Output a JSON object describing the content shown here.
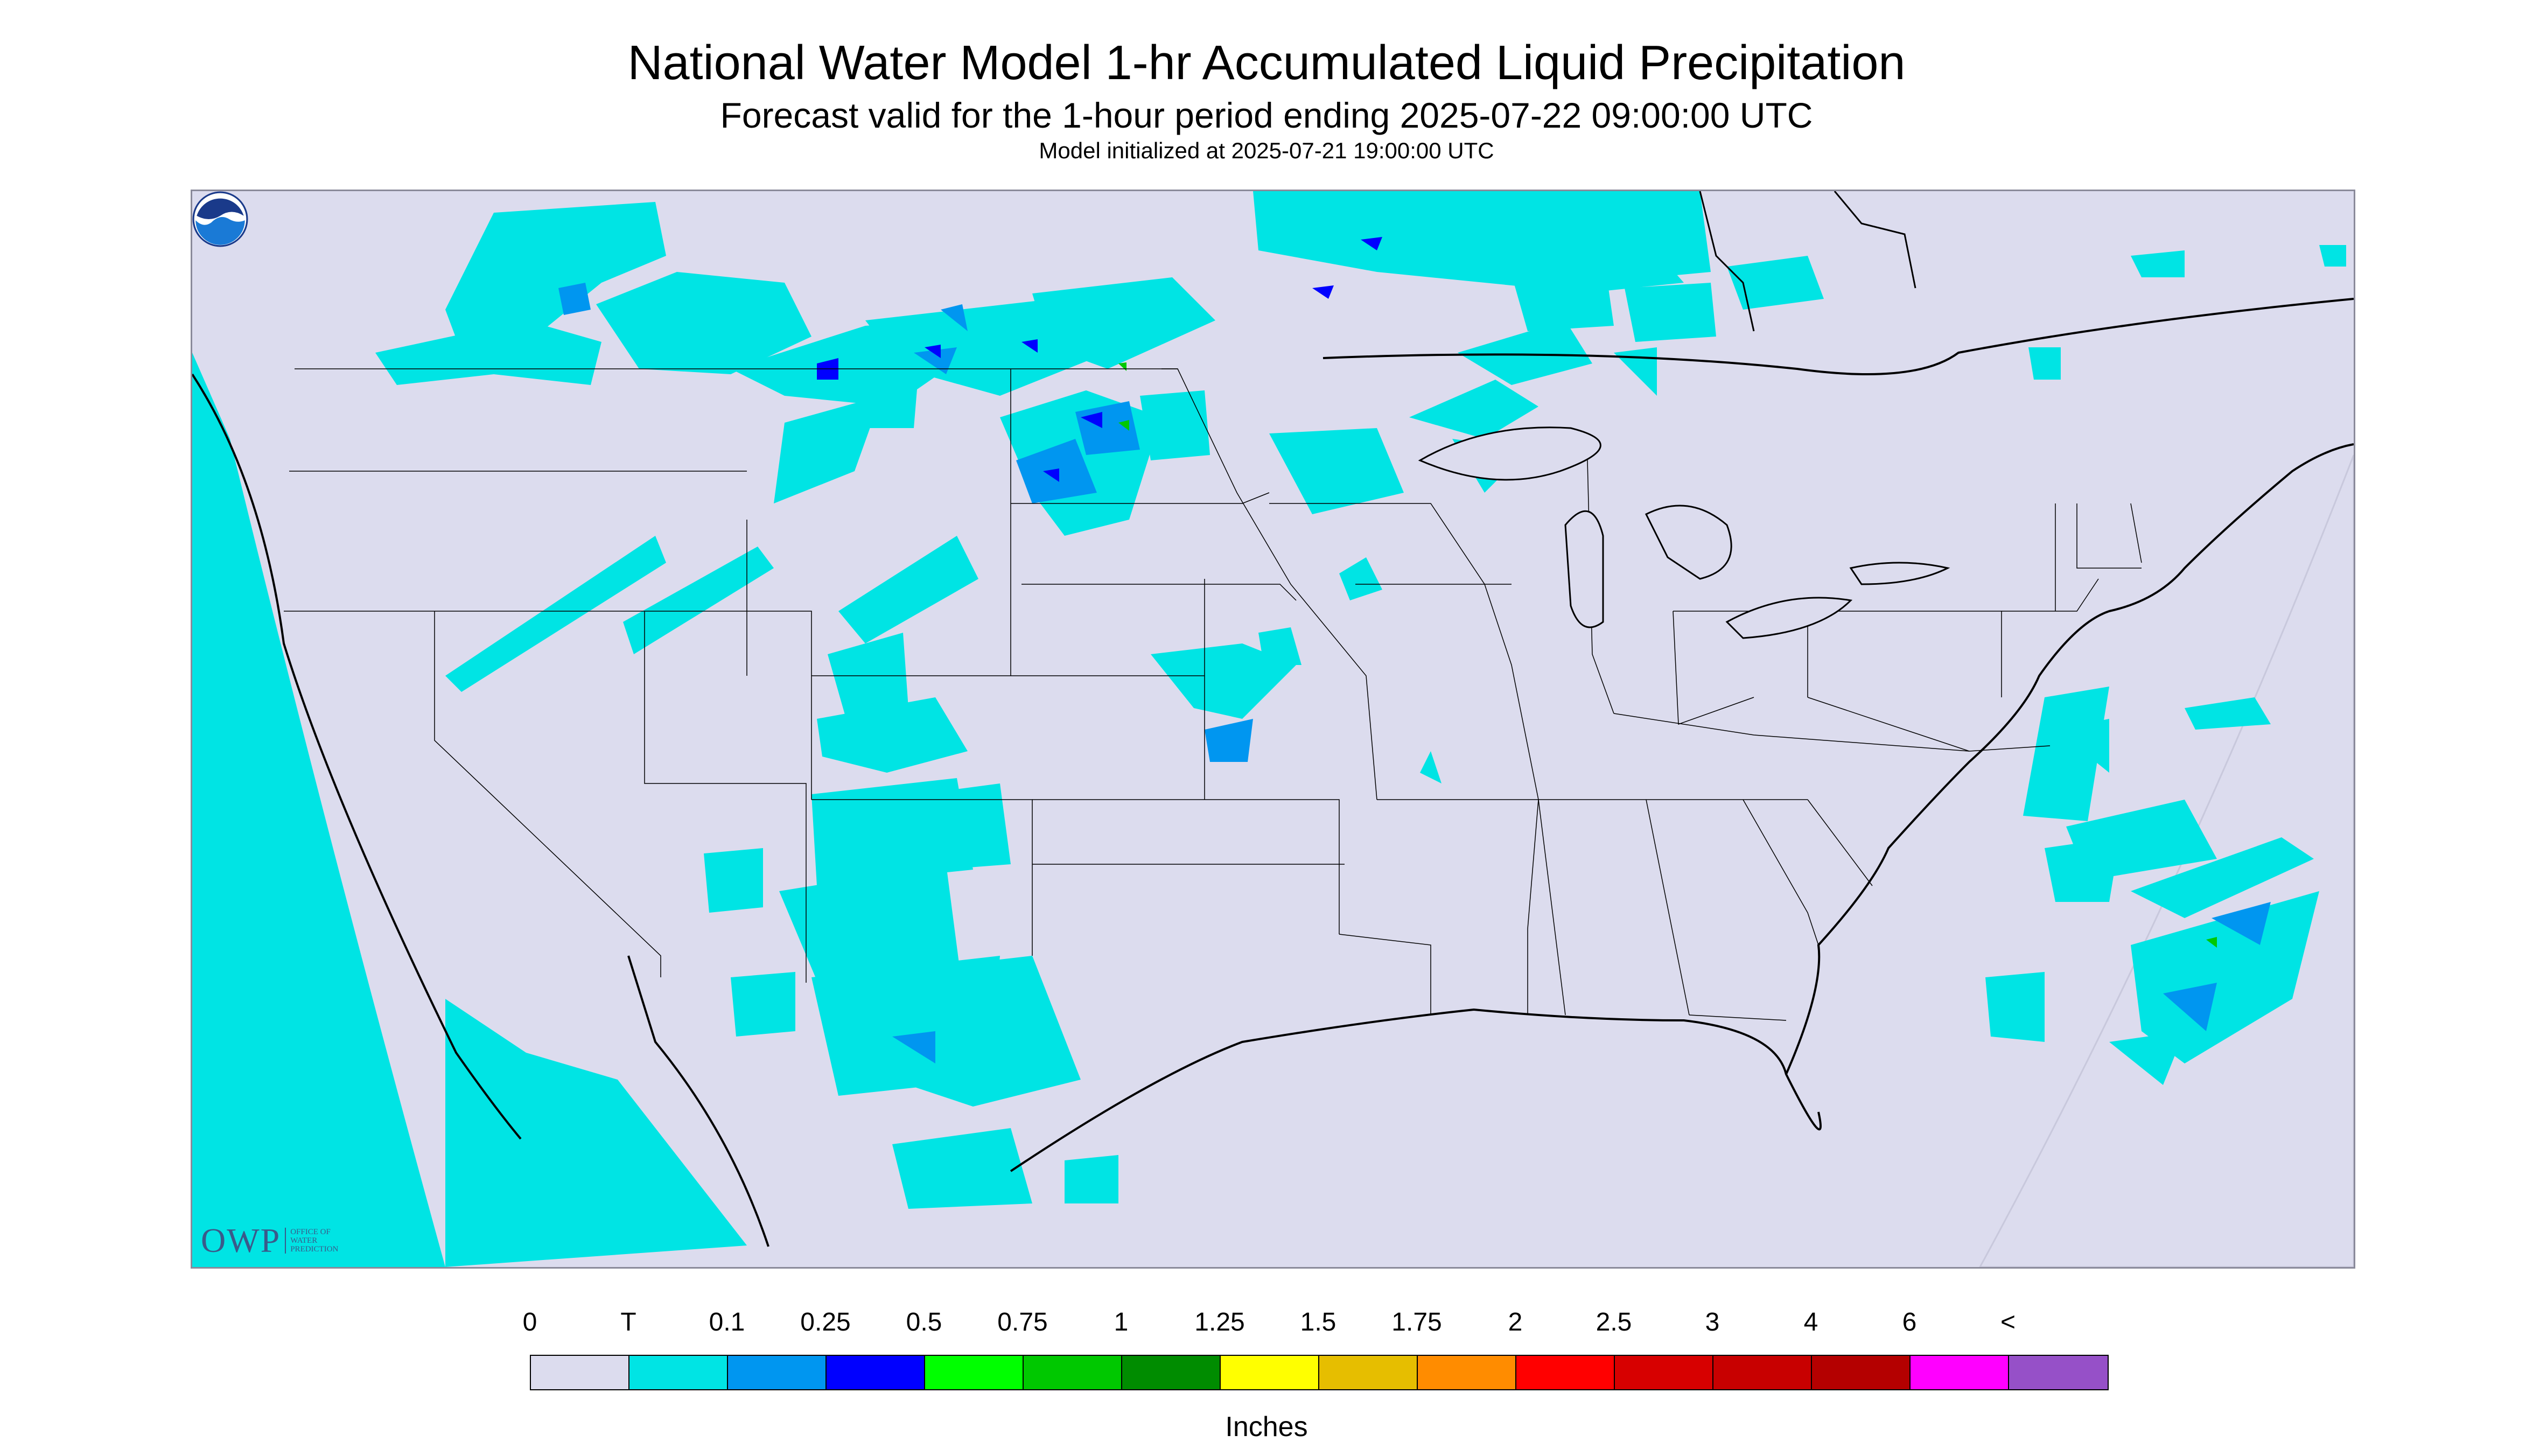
{
  "header": {
    "title": "National Water Model 1-hr Accumulated Liquid Precipitation",
    "subtitle": "Forecast valid for the 1-hour period ending 2025-07-22 09:00:00 UTC",
    "init": "Model initialized at 2025-07-21 19:00:00 UTC"
  },
  "map": {
    "background_color": "#dcdcee",
    "precip_color_trace": "#00e4e4",
    "precip_color_mid": "#0096f0",
    "precip_color_heavy": "#0000ff",
    "logo_left": {
      "mark": "OWP",
      "line1": "OFFICE OF",
      "line2": "WATER",
      "line3": "PREDICTION"
    },
    "logo_right_icon": "noaa-logo-icon"
  },
  "legend": {
    "labels": [
      "0",
      "T",
      "0.1",
      "0.25",
      "0.5",
      "0.75",
      "1",
      "1.25",
      "1.5",
      "1.75",
      "2",
      "2.5",
      "3",
      "4",
      "6",
      "<"
    ],
    "colors": [
      "#dcdcee",
      "#00e4e4",
      "#0096f0",
      "#0000ff",
      "#00ff00",
      "#00c800",
      "#008c00",
      "#ffff00",
      "#e6be00",
      "#ff8c00",
      "#ff0000",
      "#d70000",
      "#c80000",
      "#b40000",
      "#ff00ff",
      "#9650c8"
    ],
    "units": "Inches"
  }
}
